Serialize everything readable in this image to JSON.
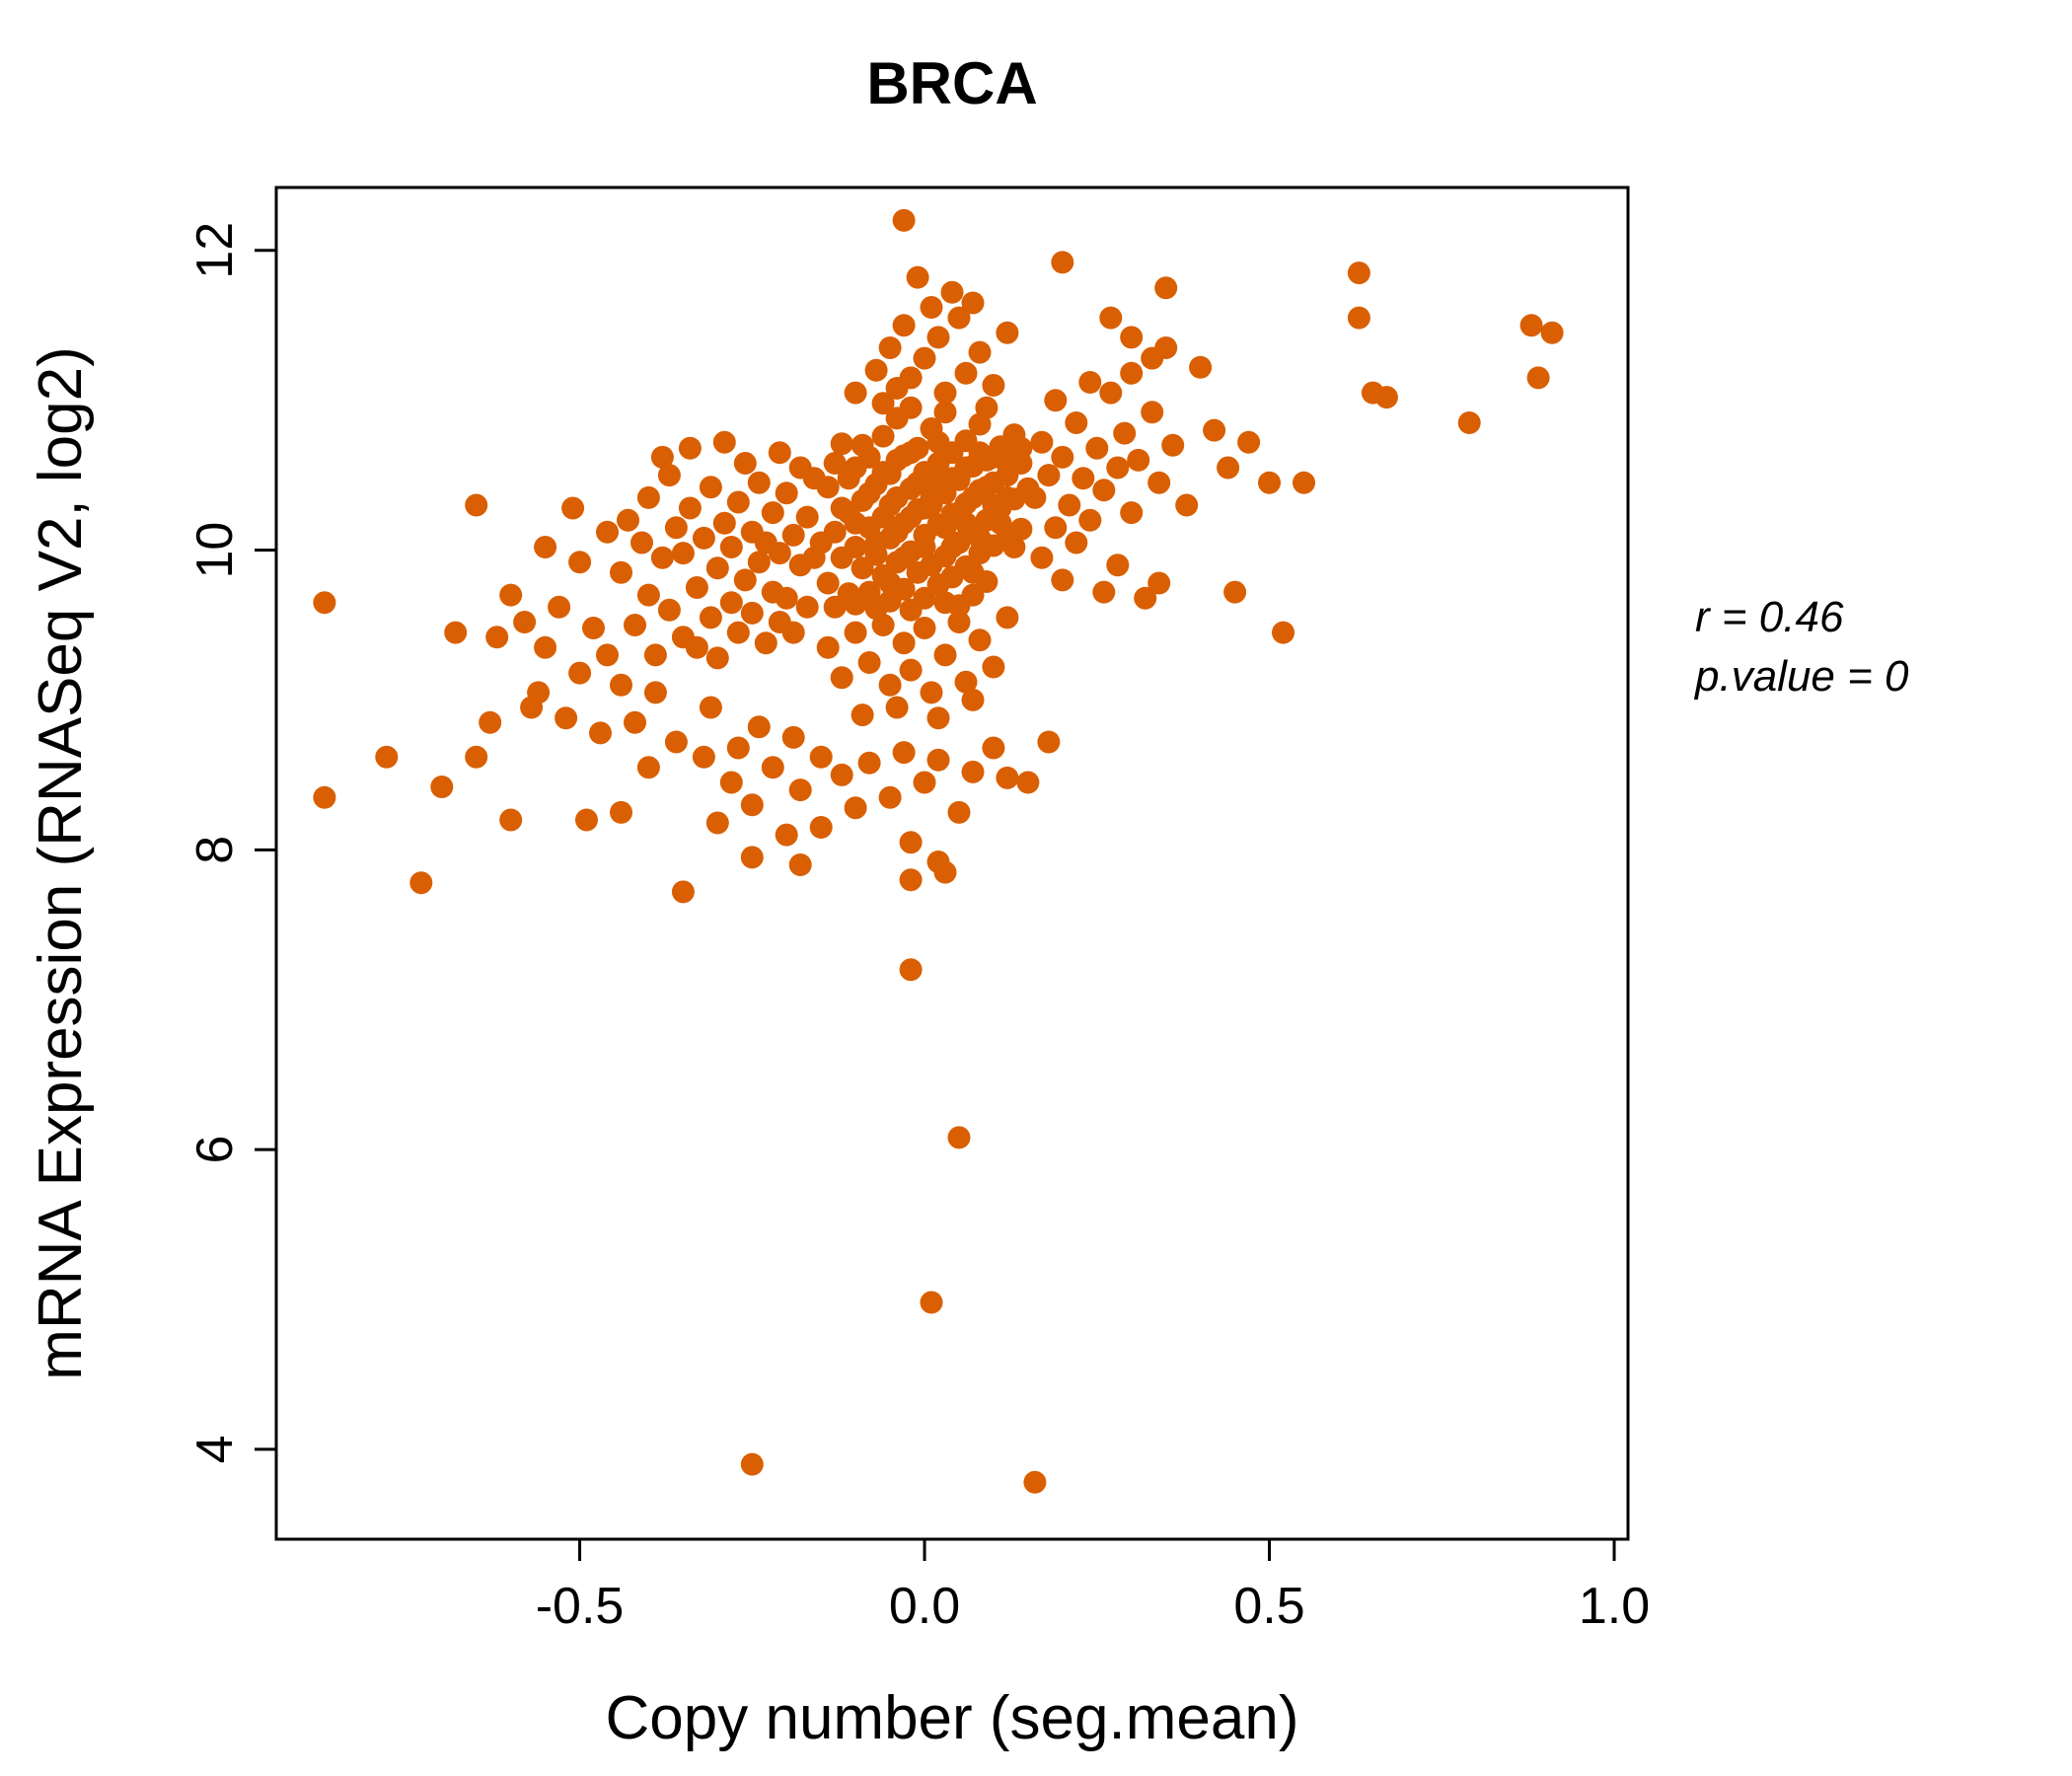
{
  "title": "BRCA",
  "colors": {
    "accent": "#d95f02",
    "points": "#d95f02",
    "axis": "#000000",
    "background": "#ffffff"
  },
  "annotation": {
    "r_label": "r = 0.46",
    "p_label": "p.value = 0"
  },
  "chart_data": {
    "type": "scatter",
    "title": "BRCA",
    "xlabel": "Copy number (seg.mean)",
    "ylabel": "mRNA Expression (RNASeq V2, log2)",
    "xlim": [
      -0.94,
      1.02
    ],
    "ylim": [
      3.4,
      12.42
    ],
    "x_ticks": [
      -0.5,
      0.0,
      0.5,
      1.0
    ],
    "x_tick_labels": [
      "-0.5",
      "0.0",
      "0.5",
      "1.0"
    ],
    "y_ticks": [
      4,
      6,
      8,
      10,
      12
    ],
    "y_tick_labels": [
      "4",
      "6",
      "8",
      "10",
      "12"
    ],
    "grid": false,
    "legend": "none",
    "stats": {
      "r": 0.46,
      "p_value": 0
    },
    "points": [
      [
        -0.15,
        10.05
      ],
      [
        -0.14,
        9.78
      ],
      [
        -0.14,
        10.42
      ],
      [
        -0.13,
        10.12
      ],
      [
        -0.13,
        9.62
      ],
      [
        -0.12,
        10.71
      ],
      [
        -0.12,
        9.95
      ],
      [
        -0.11,
        10.25
      ],
      [
        -0.11,
        9.71
      ],
      [
        -0.1,
        10.55
      ],
      [
        -0.1,
        10.02
      ],
      [
        -0.1,
        9.64
      ],
      [
        -0.09,
        10.33
      ],
      [
        -0.09,
        9.88
      ],
      [
        -0.08,
        10.62
      ],
      [
        -0.08,
        10.15
      ],
      [
        -0.08,
        9.72
      ],
      [
        -0.07,
        10.44
      ],
      [
        -0.07,
        9.97
      ],
      [
        -0.07,
        9.61
      ],
      [
        -0.06,
        10.76
      ],
      [
        -0.06,
        10.22
      ],
      [
        -0.06,
        9.83
      ],
      [
        -0.05,
        10.51
      ],
      [
        -0.05,
        10.08
      ],
      [
        -0.05,
        9.66
      ],
      [
        -0.04,
        10.88
      ],
      [
        -0.04,
        10.35
      ],
      [
        -0.04,
        9.92
      ],
      [
        -0.03,
        10.63
      ],
      [
        -0.03,
        10.18
      ],
      [
        -0.03,
        9.74
      ],
      [
        -0.02,
        10.95
      ],
      [
        -0.02,
        10.41
      ],
      [
        -0.02,
        9.99
      ],
      [
        -0.02,
        9.6
      ],
      [
        -0.01,
        10.68
      ],
      [
        -0.01,
        10.27
      ],
      [
        -0.01,
        9.85
      ],
      [
        0,
        10.52
      ],
      [
        0,
        10.1
      ],
      [
        0,
        9.68
      ],
      [
        0.01,
        10.81
      ],
      [
        0.01,
        10.3
      ],
      [
        0.01,
        9.9
      ],
      [
        0.02,
        10.58
      ],
      [
        0.02,
        10.17
      ],
      [
        0.02,
        9.77
      ],
      [
        0.03,
        10.92
      ],
      [
        0.03,
        10.38
      ],
      [
        0.03,
        9.96
      ],
      [
        0.04,
        10.65
      ],
      [
        0.04,
        10.24
      ],
      [
        0.04,
        9.82
      ],
      [
        0.05,
        10.47
      ],
      [
        0.05,
        10.05
      ],
      [
        0.05,
        9.63
      ],
      [
        0.06,
        10.73
      ],
      [
        0.06,
        10.31
      ],
      [
        0.06,
        9.89
      ],
      [
        0.07,
        10.56
      ],
      [
        0.07,
        10.12
      ],
      [
        0.07,
        9.7
      ],
      [
        0.08,
        10.84
      ],
      [
        0.08,
        10.4
      ],
      [
        0.08,
        9.98
      ],
      [
        0.09,
        10.6
      ],
      [
        0.09,
        10.2
      ],
      [
        0.09,
        9.79
      ],
      [
        0.1,
        10.45
      ],
      [
        0.1,
        10.03
      ],
      [
        0.11,
        10.69
      ],
      [
        0.11,
        10.28
      ],
      [
        0.12,
        10.5
      ],
      [
        0.12,
        10.09
      ],
      [
        0.13,
        10.77
      ],
      [
        0.13,
        10.34
      ],
      [
        0.14,
        10.58
      ],
      [
        0.14,
        10.14
      ],
      [
        0.15,
        10.41
      ],
      [
        -0.13,
        10.58
      ],
      [
        -0.11,
        10.48
      ],
      [
        -0.09,
        10.7
      ],
      [
        -0.07,
        10.05
      ],
      [
        -0.05,
        10.3
      ],
      [
        -0.04,
        10.6
      ],
      [
        -0.03,
        9.95
      ],
      [
        -0.02,
        10.22
      ],
      [
        -0.01,
        10.45
      ],
      [
        0,
        10.02
      ],
      [
        0.01,
        10.35
      ],
      [
        0.02,
        10.72
      ],
      [
        0.03,
        10.15
      ],
      [
        0.04,
        10.48
      ],
      [
        0.05,
        10.25
      ],
      [
        0.06,
        10.55
      ],
      [
        0.07,
        10.35
      ],
      [
        0.08,
        10.08
      ],
      [
        0.09,
        10.42
      ],
      [
        0.1,
        10.62
      ],
      [
        0.11,
        10.18
      ],
      [
        0.12,
        10.35
      ],
      [
        0.13,
        10.02
      ],
      [
        0.14,
        10.68
      ],
      [
        -0.12,
        10.28
      ],
      [
        -0.1,
        10.18
      ],
      [
        -0.08,
        10.38
      ],
      [
        -0.06,
        10.52
      ],
      [
        -0.04,
        10.12
      ],
      [
        -0.02,
        10.65
      ],
      [
        0,
        10.28
      ],
      [
        0.02,
        10.45
      ],
      [
        0.04,
        10.02
      ],
      [
        0.06,
        10.18
      ],
      [
        0.08,
        10.65
      ],
      [
        0.1,
        10.3
      ],
      [
        0.12,
        10.58
      ],
      [
        -0.05,
        9.78
      ],
      [
        0.03,
        9.65
      ],
      [
        0.07,
        9.85
      ],
      [
        -0.1,
        11.05
      ],
      [
        -0.07,
        11.2
      ],
      [
        -0.05,
        11.35
      ],
      [
        -0.03,
        11.5
      ],
      [
        -0.02,
        11.15
      ],
      [
        0,
        11.28
      ],
      [
        0.02,
        11.42
      ],
      [
        0.03,
        11.05
      ],
      [
        0.05,
        11.55
      ],
      [
        0.06,
        11.18
      ],
      [
        0.08,
        11.32
      ],
      [
        0.1,
        11.1
      ],
      [
        0.12,
        11.45
      ],
      [
        0.04,
        11.72
      ],
      [
        0.01,
        11.62
      ],
      [
        -0.04,
        11.08
      ],
      [
        0.07,
        11.65
      ],
      [
        0.09,
        10.95
      ],
      [
        -0.06,
        10.98
      ],
      [
        -0.01,
        11.82
      ],
      [
        -0.03,
        12.2
      ],
      [
        0.2,
        11.92
      ],
      [
        0.35,
        11.75
      ],
      [
        0.3,
        11.42
      ],
      [
        0.27,
        11.55
      ],
      [
        0.33,
        11.28
      ],
      [
        -0.14,
        9.35
      ],
      [
        -0.12,
        9.15
      ],
      [
        -0.1,
        9.45
      ],
      [
        -0.08,
        9.25
      ],
      [
        -0.06,
        9.5
      ],
      [
        -0.05,
        9.1
      ],
      [
        -0.03,
        9.38
      ],
      [
        -0.02,
        9.2
      ],
      [
        0,
        9.48
      ],
      [
        0.01,
        9.05
      ],
      [
        0.03,
        9.3
      ],
      [
        0.05,
        9.52
      ],
      [
        0.06,
        9.12
      ],
      [
        0.08,
        9.4
      ],
      [
        0.1,
        9.22
      ],
      [
        0.12,
        9.55
      ],
      [
        -0.04,
        8.95
      ],
      [
        0.02,
        8.88
      ],
      [
        0.07,
        9
      ],
      [
        -0.09,
        8.9
      ],
      [
        -0.44,
        9.85
      ],
      [
        -0.43,
        10.2
      ],
      [
        -0.42,
        9.5
      ],
      [
        -0.41,
        10.05
      ],
      [
        -0.4,
        9.7
      ],
      [
        -0.4,
        10.35
      ],
      [
        -0.39,
        9.3
      ],
      [
        -0.38,
        9.95
      ],
      [
        -0.37,
        10.5
      ],
      [
        -0.37,
        9.6
      ],
      [
        -0.36,
        10.15
      ],
      [
        -0.35,
        9.42
      ],
      [
        -0.35,
        9.98
      ],
      [
        -0.34,
        10.28
      ],
      [
        -0.33,
        9.75
      ],
      [
        -0.33,
        9.35
      ],
      [
        -0.32,
        10.08
      ],
      [
        -0.31,
        9.55
      ],
      [
        -0.31,
        10.42
      ],
      [
        -0.3,
        9.88
      ],
      [
        -0.3,
        9.28
      ],
      [
        -0.29,
        10.18
      ],
      [
        -0.28,
        9.65
      ],
      [
        -0.28,
        10.02
      ],
      [
        -0.27,
        9.45
      ],
      [
        -0.27,
        10.32
      ],
      [
        -0.26,
        9.8
      ],
      [
        -0.25,
        10.12
      ],
      [
        -0.25,
        9.58
      ],
      [
        -0.24,
        9.92
      ],
      [
        -0.24,
        10.45
      ],
      [
        -0.23,
        9.38
      ],
      [
        -0.23,
        10.05
      ],
      [
        -0.22,
        9.72
      ],
      [
        -0.22,
        10.25
      ],
      [
        -0.21,
        9.52
      ],
      [
        -0.21,
        9.98
      ],
      [
        -0.2,
        10.38
      ],
      [
        -0.2,
        9.68
      ],
      [
        -0.19,
        10.1
      ],
      [
        -0.19,
        9.45
      ],
      [
        -0.18,
        9.9
      ],
      [
        -0.18,
        10.55
      ],
      [
        -0.17,
        9.62
      ],
      [
        -0.17,
        10.22
      ],
      [
        -0.16,
        9.95
      ],
      [
        -0.16,
        10.48
      ],
      [
        -0.38,
        10.62
      ],
      [
        -0.34,
        10.68
      ],
      [
        -0.29,
        10.72
      ],
      [
        -0.26,
        10.58
      ],
      [
        -0.21,
        10.65
      ],
      [
        -0.42,
        8.85
      ],
      [
        -0.36,
        8.72
      ],
      [
        -0.31,
        8.95
      ],
      [
        -0.27,
        8.68
      ],
      [
        -0.24,
        8.82
      ],
      [
        -0.19,
        8.75
      ],
      [
        -0.44,
        9.1
      ],
      [
        -0.39,
        9.05
      ],
      [
        -0.73,
        7.78
      ],
      [
        -0.7,
        8.42
      ],
      [
        -0.68,
        9.45
      ],
      [
        -0.65,
        8.62
      ],
      [
        -0.65,
        10.3
      ],
      [
        -0.62,
        9.42
      ],
      [
        -0.6,
        9.7
      ],
      [
        -0.6,
        8.2
      ],
      [
        -0.58,
        9.52
      ],
      [
        -0.57,
        8.95
      ],
      [
        -0.55,
        9.35
      ],
      [
        -0.55,
        10.02
      ],
      [
        -0.53,
        9.62
      ],
      [
        -0.52,
        8.88
      ],
      [
        -0.5,
        9.18
      ],
      [
        -0.5,
        9.92
      ],
      [
        -0.48,
        9.48
      ],
      [
        -0.47,
        8.78
      ],
      [
        -0.46,
        10.12
      ],
      [
        -0.46,
        9.3
      ],
      [
        -0.56,
        9.05
      ],
      [
        -0.63,
        8.85
      ],
      [
        -0.51,
        10.28
      ],
      [
        -0.49,
        8.2
      ],
      [
        -0.44,
        8.25
      ],
      [
        -0.87,
        9.65
      ],
      [
        -0.87,
        8.35
      ],
      [
        -0.78,
        8.62
      ],
      [
        0.16,
        10.35
      ],
      [
        0.17,
        10.72
      ],
      [
        0.17,
        9.95
      ],
      [
        0.18,
        10.5
      ],
      [
        0.19,
        10.15
      ],
      [
        0.19,
        11
      ],
      [
        0.2,
        10.62
      ],
      [
        0.2,
        9.8
      ],
      [
        0.21,
        10.3
      ],
      [
        0.22,
        10.85
      ],
      [
        0.22,
        10.05
      ],
      [
        0.23,
        10.48
      ],
      [
        0.24,
        11.12
      ],
      [
        0.24,
        10.2
      ],
      [
        0.25,
        10.68
      ],
      [
        0.26,
        10.4
      ],
      [
        0.26,
        9.72
      ],
      [
        0.27,
        11.05
      ],
      [
        0.28,
        10.55
      ],
      [
        0.28,
        9.9
      ],
      [
        0.29,
        10.78
      ],
      [
        0.3,
        10.25
      ],
      [
        0.3,
        11.18
      ],
      [
        0.31,
        10.6
      ],
      [
        0.32,
        9.68
      ],
      [
        0.33,
        10.92
      ],
      [
        0.34,
        10.45
      ],
      [
        0.35,
        11.35
      ],
      [
        0.36,
        10.7
      ],
      [
        0.38,
        10.3
      ],
      [
        0.4,
        11.22
      ],
      [
        0.42,
        10.8
      ],
      [
        0.44,
        10.55
      ],
      [
        0.34,
        9.78
      ],
      [
        0.47,
        10.72
      ],
      [
        0.5,
        10.45
      ],
      [
        0.52,
        9.45
      ],
      [
        0.45,
        9.72
      ],
      [
        0.55,
        10.45
      ],
      [
        0.63,
        11.85
      ],
      [
        0.63,
        11.55
      ],
      [
        0.65,
        11.05
      ],
      [
        0.67,
        11.02
      ],
      [
        0.79,
        10.85
      ],
      [
        0.88,
        11.5
      ],
      [
        0.91,
        11.45
      ],
      [
        0.89,
        11.15
      ],
      [
        -0.35,
        7.72
      ],
      [
        -0.3,
        8.18
      ],
      [
        -0.28,
        8.45
      ],
      [
        -0.25,
        8.3
      ],
      [
        -0.22,
        8.55
      ],
      [
        -0.2,
        8.1
      ],
      [
        -0.18,
        8.4
      ],
      [
        -0.15,
        8.62
      ],
      [
        -0.15,
        8.15
      ],
      [
        -0.12,
        8.5
      ],
      [
        -0.1,
        8.28
      ],
      [
        -0.08,
        8.58
      ],
      [
        -0.05,
        8.35
      ],
      [
        -0.03,
        8.65
      ],
      [
        -0.02,
        8.05
      ],
      [
        0,
        8.45
      ],
      [
        0.02,
        8.6
      ],
      [
        0.03,
        7.85
      ],
      [
        0.05,
        8.25
      ],
      [
        0.07,
        8.52
      ],
      [
        0.1,
        8.68
      ],
      [
        0.12,
        8.48
      ],
      [
        -0.25,
        7.95
      ],
      [
        -0.18,
        7.9
      ],
      [
        0.02,
        7.92
      ],
      [
        -0.02,
        7.8
      ],
      [
        0.15,
        8.45
      ],
      [
        0.18,
        8.72
      ],
      [
        -0.32,
        8.62
      ],
      [
        -0.4,
        8.55
      ],
      [
        -0.02,
        7.2
      ],
      [
        0.05,
        6.08
      ],
      [
        0.01,
        4.98
      ],
      [
        -0.25,
        3.9
      ],
      [
        0.16,
        3.78
      ]
    ]
  }
}
